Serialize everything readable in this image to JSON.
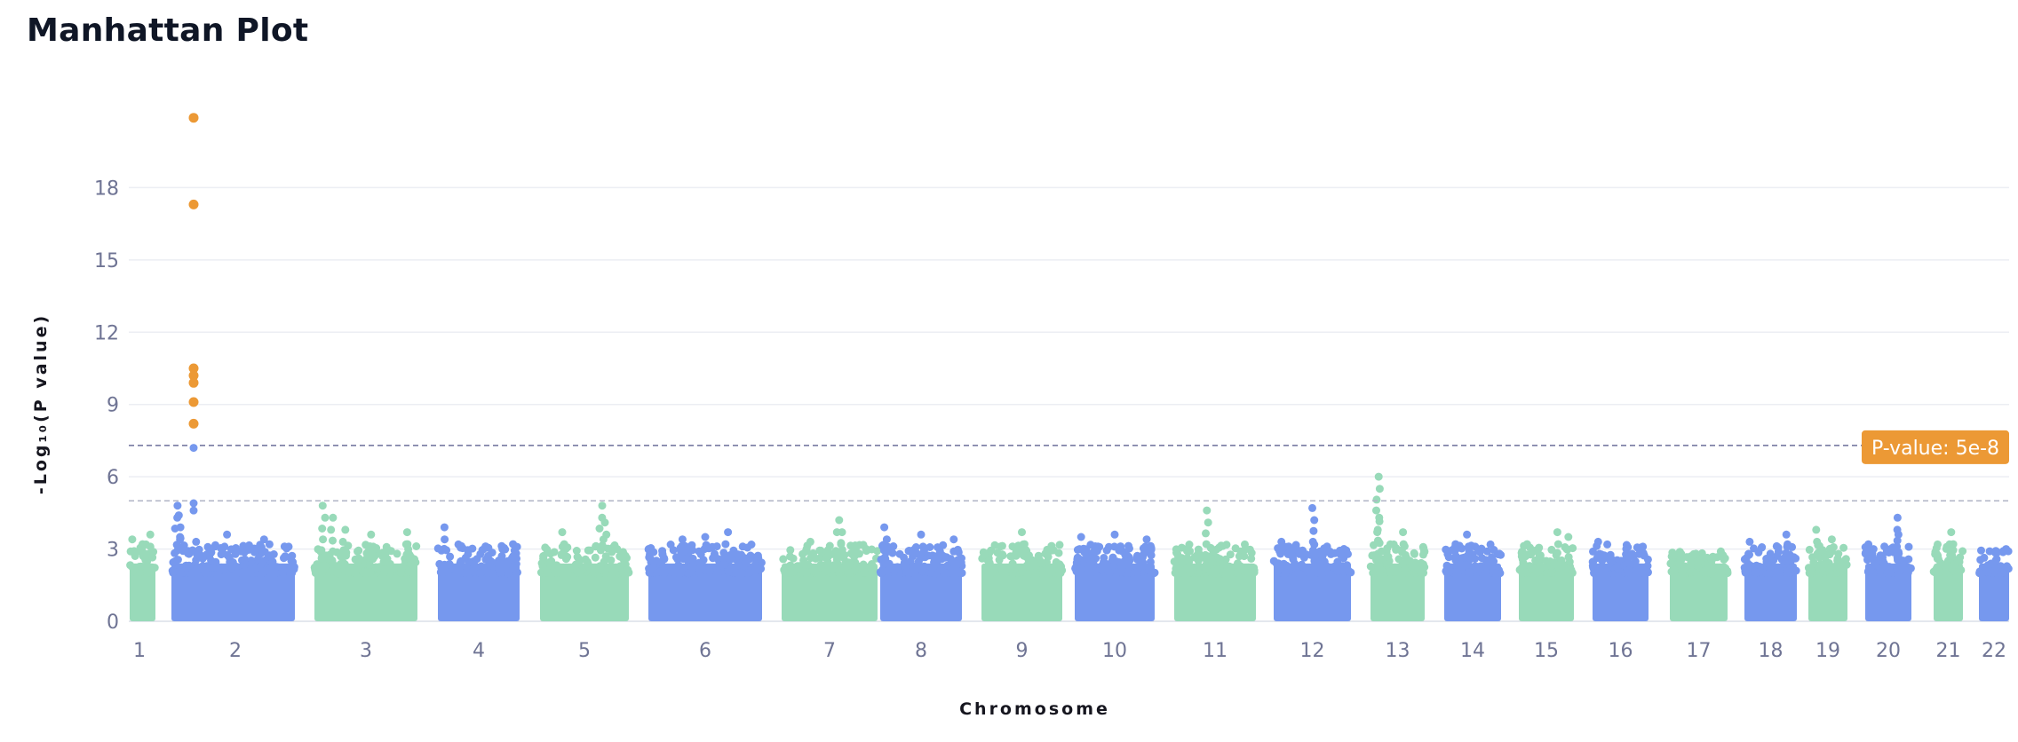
{
  "title": "Manhattan Plot",
  "chart_data": {
    "type": "scatter",
    "title": "Manhattan Plot",
    "xlabel": "Chromosome",
    "ylabel": "-Log₁₀(P value)",
    "ylim": [
      0,
      21
    ],
    "y_ticks": [
      0,
      3,
      6,
      9,
      12,
      15,
      18
    ],
    "grid": "horizontal",
    "chromosomes": [
      {
        "name": "1",
        "color": "#98dab9",
        "max": 3.6,
        "peaks": [
          [
            0.1,
            3.4
          ],
          [
            0.8,
            3.6
          ],
          [
            0.5,
            3.2
          ]
        ]
      },
      {
        "name": "2",
        "color": "#7698ee",
        "max": 4.8,
        "peaks": [
          [
            0.05,
            4.8
          ],
          [
            0.06,
            4.4
          ],
          [
            0.07,
            3.5
          ],
          [
            0.2,
            3.3
          ],
          [
            0.45,
            3.6
          ],
          [
            0.75,
            3.4
          ],
          [
            0.95,
            3.1
          ]
        ]
      },
      {
        "name": "3",
        "color": "#98dab9",
        "max": 4.8,
        "peaks": [
          [
            0.08,
            4.8
          ],
          [
            0.18,
            4.3
          ],
          [
            0.3,
            3.8
          ],
          [
            0.55,
            3.6
          ],
          [
            0.9,
            3.7
          ]
        ]
      },
      {
        "name": "4",
        "color": "#7698ee",
        "max": 3.9,
        "peaks": [
          [
            0.08,
            3.9
          ],
          [
            0.92,
            3.2
          ]
        ]
      },
      {
        "name": "5",
        "color": "#98dab9",
        "max": 4.8,
        "peaks": [
          [
            0.25,
            3.7
          ],
          [
            0.7,
            4.8
          ],
          [
            0.73,
            4.1
          ]
        ]
      },
      {
        "name": "6",
        "color": "#7698ee",
        "max": 3.7,
        "peaks": [
          [
            0.3,
            3.4
          ],
          [
            0.5,
            3.5
          ],
          [
            0.7,
            3.7
          ]
        ]
      },
      {
        "name": "7",
        "color": "#98dab9",
        "max": 4.2,
        "peaks": [
          [
            0.3,
            3.3
          ],
          [
            0.6,
            4.2
          ],
          [
            0.63,
            3.7
          ]
        ]
      },
      {
        "name": "8",
        "color": "#7698ee",
        "max": 3.9,
        "peaks": [
          [
            0.05,
            3.9
          ],
          [
            0.5,
            3.6
          ],
          [
            0.9,
            3.4
          ]
        ]
      },
      {
        "name": "9",
        "color": "#98dab9",
        "max": 3.7,
        "peaks": [
          [
            0.5,
            3.7
          ],
          [
            0.85,
            3.0
          ]
        ]
      },
      {
        "name": "10",
        "color": "#7698ee",
        "max": 3.6,
        "peaks": [
          [
            0.08,
            3.5
          ],
          [
            0.5,
            3.6
          ],
          [
            0.9,
            3.4
          ]
        ]
      },
      {
        "name": "11",
        "color": "#98dab9",
        "max": 4.6,
        "peaks": [
          [
            0.4,
            4.6
          ],
          [
            0.15,
            3.0
          ]
        ]
      },
      {
        "name": "12",
        "color": "#7698ee",
        "max": 4.7,
        "peaks": [
          [
            0.1,
            3.3
          ],
          [
            0.5,
            4.7
          ]
        ]
      },
      {
        "name": "13",
        "color": "#98dab9",
        "max": 6.0,
        "peaks": [
          [
            0.15,
            6.0
          ],
          [
            0.16,
            4.3
          ],
          [
            0.6,
            3.7
          ]
        ]
      },
      {
        "name": "14",
        "color": "#7698ee",
        "max": 3.6,
        "peaks": [
          [
            0.4,
            3.6
          ],
          [
            0.2,
            3.2
          ]
        ]
      },
      {
        "name": "15",
        "color": "#98dab9",
        "max": 3.7,
        "peaks": [
          [
            0.7,
            3.7
          ],
          [
            0.9,
            3.5
          ],
          [
            0.15,
            3.2
          ]
        ]
      },
      {
        "name": "16",
        "color": "#7698ee",
        "max": 3.3,
        "peaks": [
          [
            0.1,
            3.3
          ],
          [
            0.9,
            3.1
          ]
        ]
      },
      {
        "name": "17",
        "color": "#98dab9",
        "max": 2.9,
        "peaks": []
      },
      {
        "name": "18",
        "color": "#7698ee",
        "max": 3.6,
        "peaks": [
          [
            0.1,
            3.3
          ],
          [
            0.8,
            3.6
          ]
        ]
      },
      {
        "name": "19",
        "color": "#98dab9",
        "max": 3.8,
        "peaks": [
          [
            0.2,
            3.8
          ],
          [
            0.6,
            3.4
          ]
        ]
      },
      {
        "name": "20",
        "color": "#7698ee",
        "max": 4.3,
        "peaks": [
          [
            0.7,
            4.3
          ],
          [
            0.72,
            3.6
          ],
          [
            0.05,
            2.9
          ]
        ]
      },
      {
        "name": "21",
        "color": "#98dab9",
        "max": 3.7,
        "peaks": [
          [
            0.6,
            3.7
          ]
        ]
      },
      {
        "name": "22",
        "color": "#7698ee",
        "max": 3.0,
        "peaks": [
          [
            0.9,
            3.0
          ]
        ]
      }
    ],
    "significant_points": {
      "chromosome": "2",
      "color": "#ec9935",
      "y": [
        20.9,
        17.3,
        10.5,
        10.2,
        9.9,
        9.1,
        8.2
      ]
    },
    "thresholds": [
      {
        "y": 7.3,
        "label": "P-value: 5e-8",
        "line_color": "#6b6f9a",
        "label_bg": "#ec9935",
        "label_color": "#ffffff"
      },
      {
        "y": 5.0,
        "label": "",
        "line_color": "#b0b4c6"
      }
    ]
  }
}
